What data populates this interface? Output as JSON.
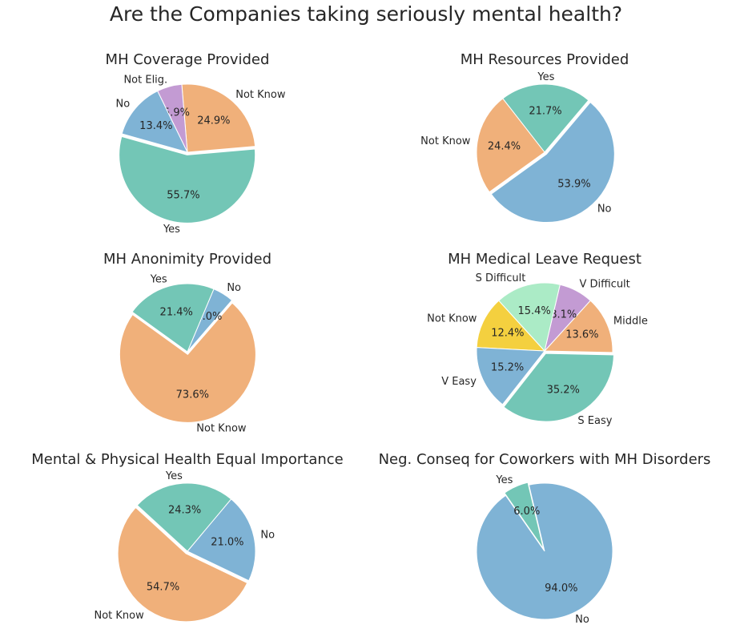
{
  "figure_title": "Are the Companies taking seriously mental health?",
  "colors": {
    "teal": "#73c6b6",
    "orange": "#f0b07a",
    "purple": "#c39bd3",
    "blue": "#7fb3d5",
    "yellow": "#f4d03f",
    "mint": "#abebc6"
  },
  "chart_data": [
    {
      "type": "pie",
      "title": "MH Coverage Provided",
      "slices": [
        {
          "label": "Yes",
          "value": 55.7,
          "pct_text": "55.7%",
          "color": "#73c6b6",
          "explode": true
        },
        {
          "label": "Not Know",
          "value": 24.9,
          "pct_text": "24.9%",
          "color": "#f0b07a",
          "explode": false
        },
        {
          "label": "Not Elig.",
          "value": 5.9,
          "pct_text": "5.9%",
          "color": "#c39bd3",
          "explode": false
        },
        {
          "label": "No",
          "value": 13.4,
          "pct_text": "13.4%",
          "color": "#7fb3d5",
          "explode": false
        }
      ]
    },
    {
      "type": "pie",
      "title": "MH Resources Provided",
      "slices": [
        {
          "label": "Yes",
          "value": 21.7,
          "pct_text": "21.7%",
          "color": "#73c6b6",
          "explode": false
        },
        {
          "label": "Not Know",
          "value": 24.4,
          "pct_text": "24.4%",
          "color": "#f0b07a",
          "explode": false
        },
        {
          "label": "No",
          "value": 53.9,
          "pct_text": "53.9%",
          "color": "#7fb3d5",
          "explode": true
        }
      ]
    },
    {
      "type": "pie",
      "title": "MH Anonimity Provided",
      "slices": [
        {
          "label": "Not Know",
          "value": 73.6,
          "pct_text": "73.6%",
          "color": "#f0b07a",
          "explode": true
        },
        {
          "label": "No",
          "value": 5.0,
          "pct_text": "5.0%",
          "color": "#7fb3d5",
          "explode": false
        },
        {
          "label": "Yes",
          "value": 21.4,
          "pct_text": "21.4%",
          "color": "#73c6b6",
          "explode": false
        }
      ]
    },
    {
      "type": "pie",
      "title": "MH Medical Leave Request",
      "slices": [
        {
          "label": "Middle",
          "value": 13.6,
          "pct_text": "13.6%",
          "color": "#f0b07a",
          "explode": false
        },
        {
          "label": "V Difficult",
          "value": 8.1,
          "pct_text": "8.1%",
          "color": "#c39bd3",
          "explode": false
        },
        {
          "label": "S Difficult",
          "value": 15.4,
          "pct_text": "15.4%",
          "color": "#abebc6",
          "explode": false
        },
        {
          "label": "Not Know",
          "value": 12.4,
          "pct_text": "12.4%",
          "color": "#f4d03f",
          "explode": false
        },
        {
          "label": "V Easy",
          "value": 15.2,
          "pct_text": "15.2%",
          "color": "#7fb3d5",
          "explode": false
        },
        {
          "label": "S Easy",
          "value": 35.2,
          "pct_text": "35.2%",
          "color": "#73c6b6",
          "explode": true
        }
      ]
    },
    {
      "type": "pie",
      "title": "Mental & Physical Health Equal Importance",
      "slices": [
        {
          "label": "Not Know",
          "value": 54.7,
          "pct_text": "54.7%",
          "color": "#f0b07a",
          "explode": true
        },
        {
          "label": "No",
          "value": 21.0,
          "pct_text": "21.0%",
          "color": "#7fb3d5",
          "explode": false
        },
        {
          "label": "Yes",
          "value": 24.3,
          "pct_text": "24.3%",
          "color": "#73c6b6",
          "explode": false
        }
      ]
    },
    {
      "type": "pie",
      "title": "Neg. Conseq for Coworkers with MH Disorders",
      "slices": [
        {
          "label": "No",
          "value": 94.0,
          "pct_text": "94.0%",
          "color": "#7fb3d5",
          "explode": false
        },
        {
          "label": "Yes",
          "value": 6.0,
          "pct_text": "6.0%",
          "color": "#73c6b6",
          "explode": true
        }
      ]
    }
  ]
}
